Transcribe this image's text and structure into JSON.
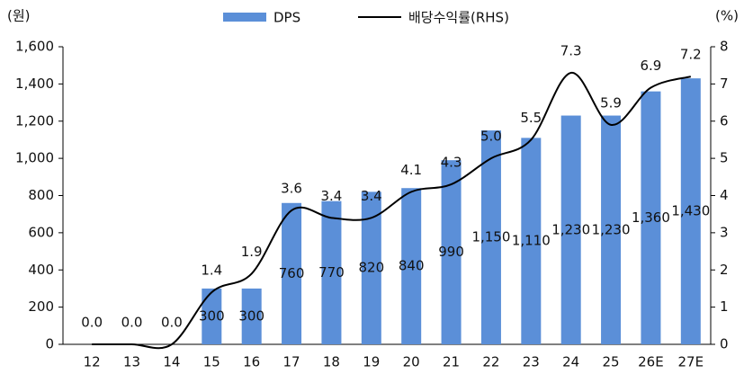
{
  "chart_data": {
    "type": "bar",
    "y_unit": "(원)",
    "y2_unit": "(%)",
    "categories": [
      "12",
      "13",
      "14",
      "15",
      "16",
      "17",
      "18",
      "19",
      "20",
      "21",
      "22",
      "23",
      "24",
      "25",
      "26E",
      "27E"
    ],
    "series": [
      {
        "name": "DPS",
        "color": "#5b8fd8",
        "values": [
          0,
          0,
          0,
          300,
          300,
          760,
          770,
          820,
          840,
          990,
          1150,
          1110,
          1230,
          1230,
          1360,
          1430
        ],
        "value_labels": [
          null,
          null,
          null,
          "300",
          "300",
          "760",
          "770",
          "820",
          "840",
          "990",
          "1,150",
          "1,110",
          "1,230",
          "1,230",
          "1,360",
          "1,430"
        ]
      },
      {
        "name": "배당수익률(RHS)",
        "type": "line",
        "axis": "y2",
        "color": "#000000",
        "values": [
          0,
          0,
          0,
          1.4,
          1.9,
          3.6,
          3.4,
          3.4,
          4.1,
          4.3,
          5.0,
          5.5,
          7.3,
          5.9,
          6.9,
          7.2
        ],
        "value_labels": [
          "0.0",
          "0.0",
          "0.0",
          "1.4",
          "1.9",
          "3.6",
          "3.4",
          "3.4",
          "4.1",
          "4.3",
          "5.0",
          "5.5",
          "7.3",
          "5.9",
          "6.9",
          "7.2"
        ]
      }
    ],
    "ylim": [
      0,
      1600
    ],
    "yticks": [
      0,
      200,
      400,
      600,
      800,
      {
        "value": 1000,
        "label": "1,000"
      },
      {
        "value": 1200,
        "label": "1,200"
      },
      {
        "value": 1400,
        "label": "1,400"
      },
      {
        "value": 1600,
        "label": "1,600"
      }
    ],
    "y2lim": [
      0,
      8
    ],
    "y2ticks": [
      0,
      1,
      2,
      3,
      4,
      5,
      6,
      7,
      8
    ]
  }
}
